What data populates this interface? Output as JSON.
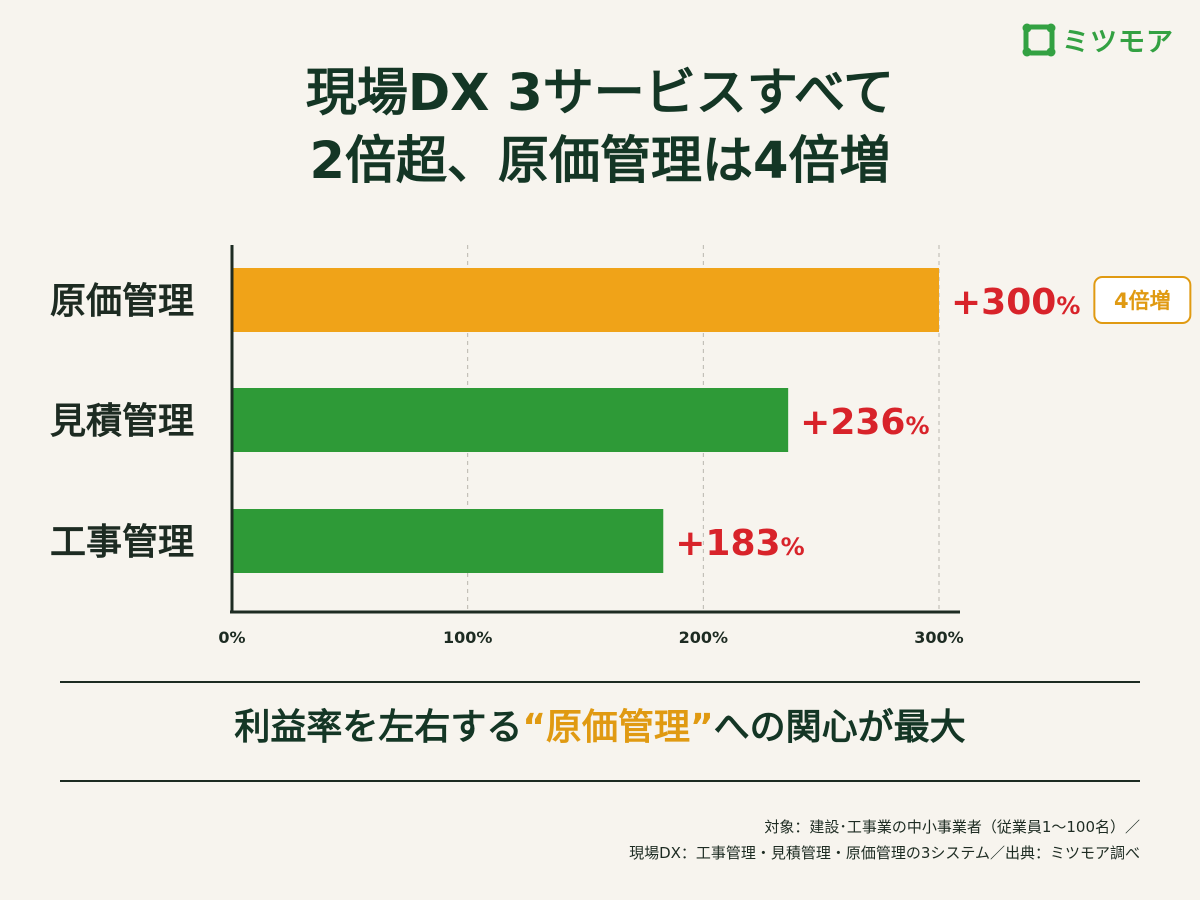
{
  "brand": {
    "name": "ミツモア",
    "color": "#33a142"
  },
  "header": {
    "title_line1": "現場DX 3サービスすべて",
    "title_line2": "2倍超、原価管理は4倍増"
  },
  "chart_data": {
    "type": "bar",
    "orientation": "horizontal",
    "categories": [
      "原価管理",
      "見積管理",
      "工事管理"
    ],
    "values": [
      300,
      236,
      183
    ],
    "value_labels": [
      "+300",
      "+236",
      "+183"
    ],
    "value_unit": "%",
    "colors": [
      "#f0a318",
      "#2e9a37",
      "#2e9a37"
    ],
    "badge": {
      "category": "原価管理",
      "text": "4倍増",
      "color": "#e09a12"
    },
    "xlim": [
      0,
      300
    ],
    "xticks": [
      0,
      100,
      200,
      300
    ],
    "xtick_labels": [
      "0%",
      "100%",
      "200%",
      "300%"
    ],
    "grid": "vertical dashed",
    "label_color": "#d8232a"
  },
  "callout": {
    "before": "利益率を左右する",
    "highlight": "“原価管理”",
    "after": "への関心が最大",
    "highlight_color": "#e09a12"
  },
  "footer": {
    "line1": "対象：建設･工事業の中小事業者（従業員1～100名）／",
    "line2": "現場DX：工事管理・見積管理・原価管理の3システム／出典：ミツモア調べ"
  }
}
